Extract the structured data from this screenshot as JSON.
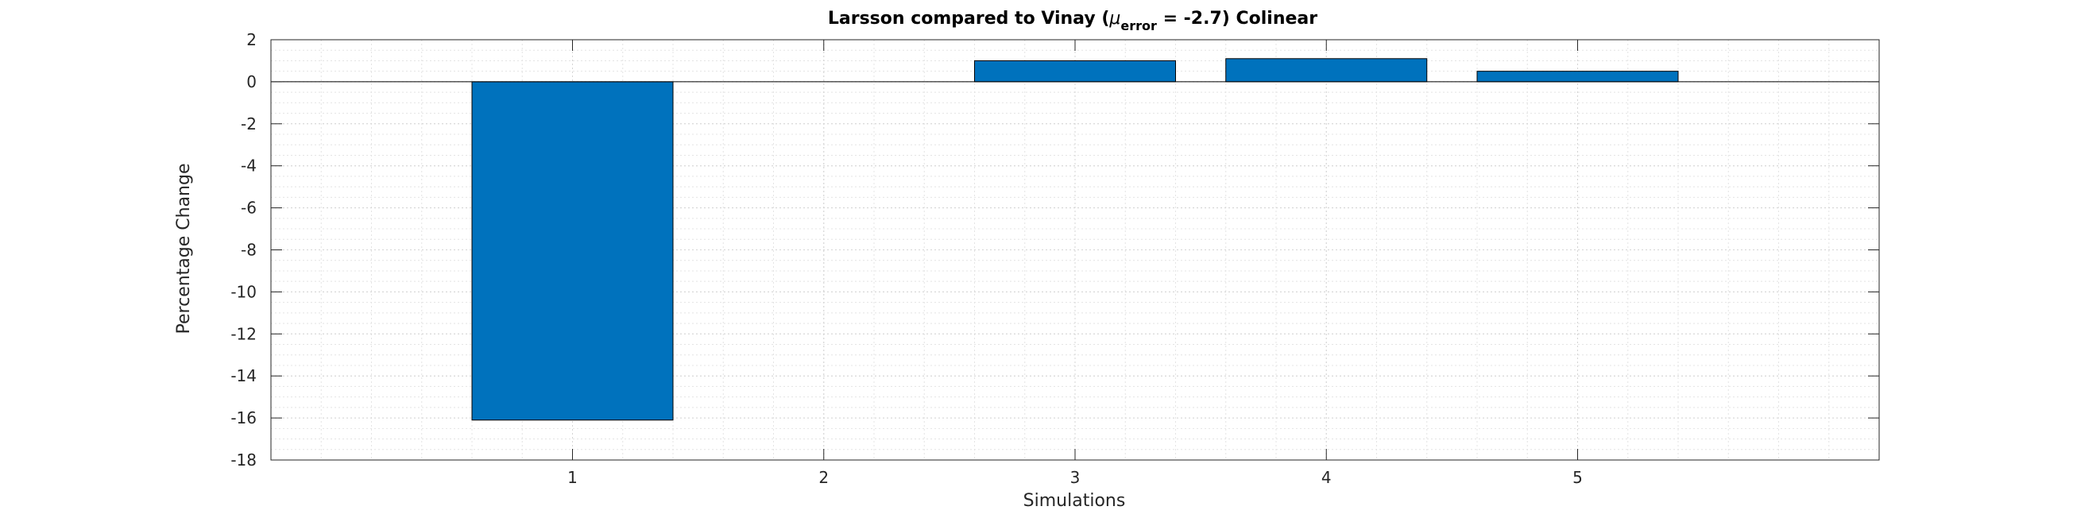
{
  "chart_data": {
    "type": "bar",
    "title_parts": {
      "before": "Larsson compared to Vinay (",
      "symbol": "μ",
      "subscript": "error",
      "after": " = -2.7) Colinear"
    },
    "xlabel": "Simulations",
    "ylabel": "Percentage Change",
    "categories": [
      "1",
      "2",
      "3",
      "4",
      "5"
    ],
    "values": [
      -16.1,
      0,
      1.0,
      1.1,
      0.5
    ],
    "xlim": [
      -0.2,
      6.2
    ],
    "ylim": [
      -18,
      2
    ],
    "yticks": [
      2,
      0,
      -2,
      -4,
      -6,
      -8,
      -10,
      -12,
      -14,
      -16,
      -18
    ],
    "ytick_labels": [
      "2",
      "0",
      "-2",
      "-4",
      "-6",
      "-8",
      "-10",
      "-12",
      "-14",
      "-16",
      "-18"
    ],
    "grid": true,
    "minor_grid": true,
    "bar_color": "#0072bd"
  }
}
